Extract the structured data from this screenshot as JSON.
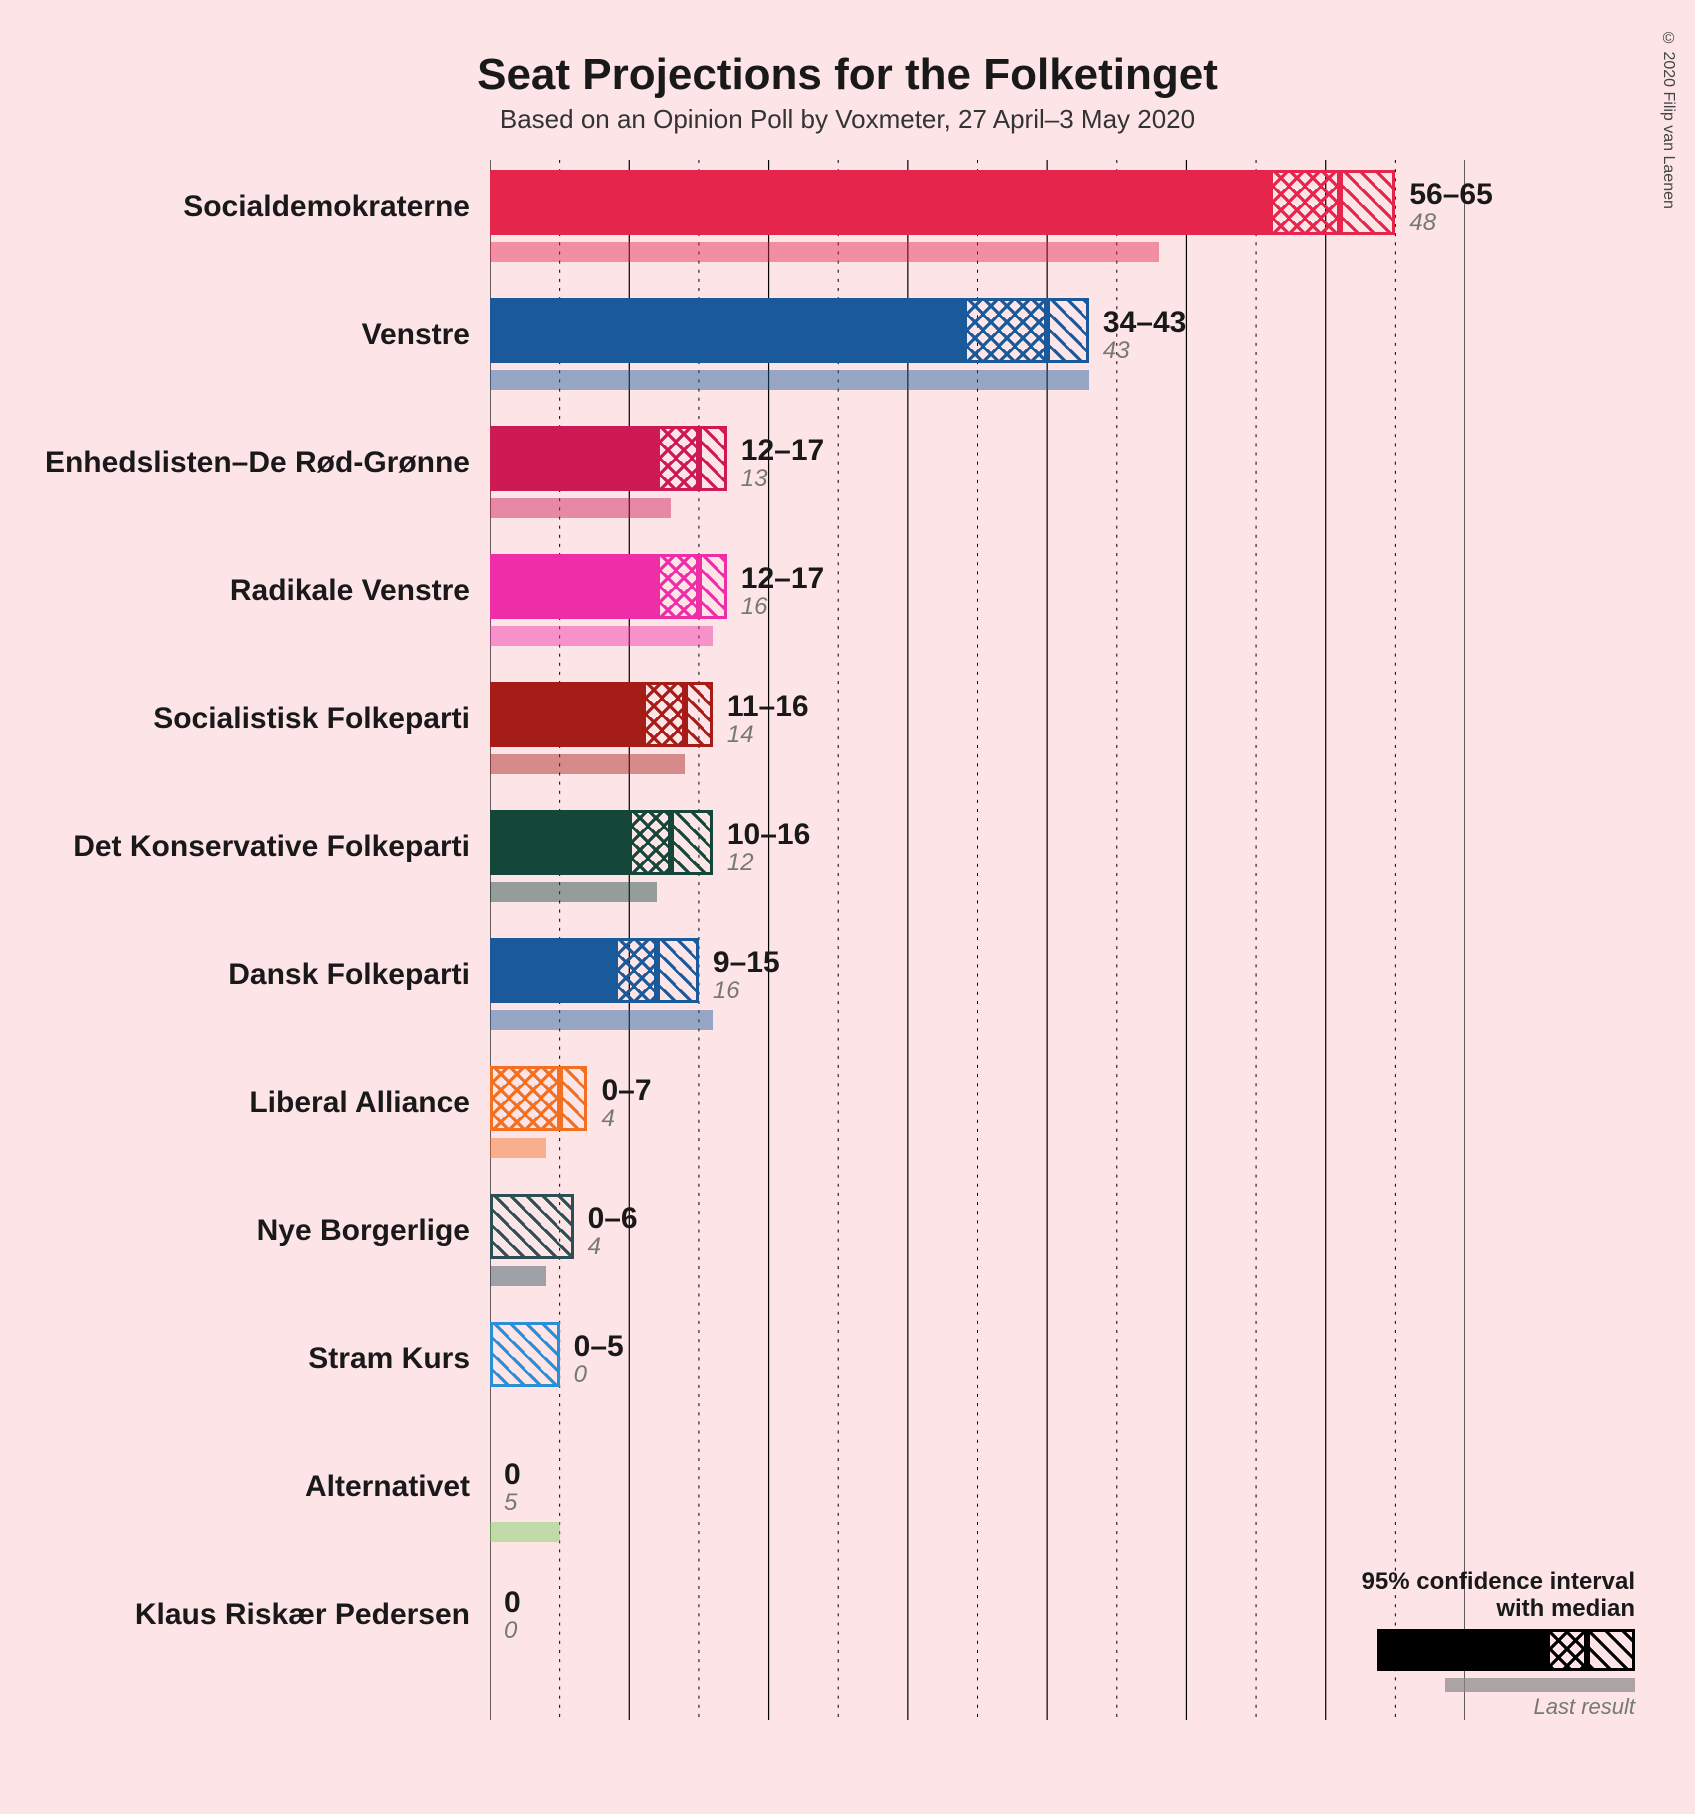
{
  "title": "Seat Projections for the Folketinget",
  "subtitle": "Based on an Opinion Poll by Voxmeter, 27 April–3 May 2020",
  "copyright": "© 2020 Filip van Laenen",
  "background_color": "#fde4e7",
  "axis": {
    "max": 70,
    "major_step": 10,
    "minor_step": 5
  },
  "legend": {
    "line1": "95% confidence interval",
    "line2": "with median",
    "last_label": "Last result",
    "demo_color": "#000000",
    "demo_solid": 50,
    "demo_h1_from": 50,
    "demo_h1_to": 62,
    "demo_h2_from": 62,
    "demo_h2_to": 76,
    "demo_last": 56
  },
  "parties": [
    {
      "name": "Socialdemokraterne",
      "color": "#e5254b",
      "low": 56,
      "q1": 56,
      "q3": 61,
      "high": 65,
      "last": 48,
      "range": "56–65"
    },
    {
      "name": "Venstre",
      "color": "#1b5a9a",
      "low": 34,
      "q1": 34,
      "q3": 40,
      "high": 43,
      "last": 43,
      "range": "34–43"
    },
    {
      "name": "Enhedslisten–De Rød-Grønne",
      "color": "#cd1a55",
      "low": 12,
      "q1": 12,
      "q3": 15,
      "high": 17,
      "last": 13,
      "range": "12–17"
    },
    {
      "name": "Radikale Venstre",
      "color": "#ef2da6",
      "low": 12,
      "q1": 12,
      "q3": 15,
      "high": 17,
      "last": 16,
      "range": "12–17"
    },
    {
      "name": "Socialistisk Folkeparti",
      "color": "#a61d18",
      "low": 11,
      "q1": 11,
      "q3": 14,
      "high": 16,
      "last": 14,
      "range": "11–16"
    },
    {
      "name": "Det Konservative Folkeparti",
      "color": "#14463a",
      "low": 10,
      "q1": 10,
      "q3": 13,
      "high": 16,
      "last": 12,
      "range": "10–16"
    },
    {
      "name": "Dansk Folkeparti",
      "color": "#1b5a9a",
      "low": 9,
      "q1": 9,
      "q3": 12,
      "high": 15,
      "last": 16,
      "range": "9–15"
    },
    {
      "name": "Liberal Alliance",
      "color": "#f36f21",
      "low": 0,
      "q1": 0,
      "q3": 5,
      "high": 7,
      "last": 4,
      "range": "0–7"
    },
    {
      "name": "Nye Borgerlige",
      "color": "#2c4f56",
      "low": 0,
      "q1": 0,
      "q3": 0,
      "high": 6,
      "last": 4,
      "range": "0–6"
    },
    {
      "name": "Stram Kurs",
      "color": "#2a8fd6",
      "low": 0,
      "q1": 0,
      "q3": 0,
      "high": 5,
      "last": 0,
      "range": "0–5"
    },
    {
      "name": "Alternativet",
      "color": "#76d159",
      "low": 0,
      "q1": 0,
      "q3": 0,
      "high": 0,
      "last": 5,
      "range": "0"
    },
    {
      "name": "Klaus Riskær Pedersen",
      "color": "#444444",
      "low": 0,
      "q1": 0,
      "q3": 0,
      "high": 0,
      "last": 0,
      "range": "0"
    }
  ]
}
